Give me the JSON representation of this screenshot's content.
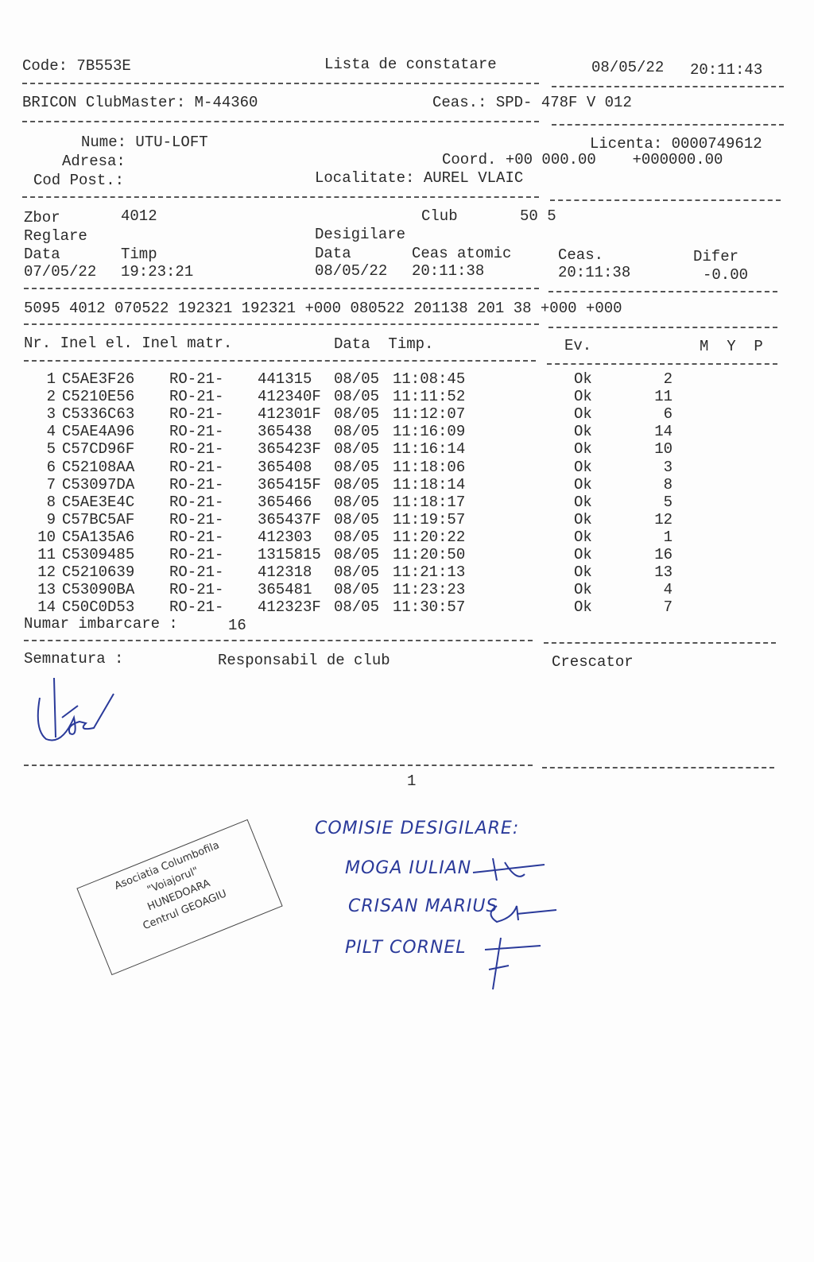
{
  "header": {
    "code": "Code: 7B553E",
    "title": "Lista de constatare",
    "date": "08/05/22",
    "time": "20:11:43"
  },
  "device": {
    "clubmaster": "BRICON ClubMaster: M-44360",
    "clock": "Ceas.: SPD- 478F V 012"
  },
  "owner": {
    "name": "Nume: UTU-LOFT",
    "licence": "Licenta: 0000749612",
    "address": "Adresa:",
    "coord": "Coord. +00 000.00    +000000.00",
    "postcode": "Cod Post.:",
    "locality": "Localitate: AUREL VLAIC"
  },
  "flight": {
    "zbor_label": "Zbor",
    "zbor": "4012",
    "club_label": "Club",
    "club": "50 5",
    "reglare": "Reglare",
    "desigilare": "Desigilare",
    "data1": "Data",
    "timp1": "Timp",
    "data2": "Data",
    "ceas_atomic": "Ceas atomic",
    "ceas": "Ceas.",
    "difer": "Difer",
    "reg_date": "07/05/22",
    "reg_time": "19:23:21",
    "des_date": "08/05/22",
    "des_atomic": "20:11:38",
    "des_clock": "20:11:38",
    "diff": "-0.00"
  },
  "code_line": "5095 4012 070522 192321 192321 +000 080522 201138 201 38 +000 +000",
  "table": {
    "headers": {
      "nr": "Nr. Inel el. Inel matr.",
      "data": "Data  Timp.",
      "ev": "Ev.",
      "myp": "M  Y  P"
    },
    "rows": [
      {
        "nr": "1",
        "el": "C5AE3F26",
        "prefix": "RO-21-",
        "matr": "441315",
        "date": "08/05",
        "time": "11:08:45",
        "ev": "Ok",
        "pos": "2"
      },
      {
        "nr": "2",
        "el": "C5210E56",
        "prefix": "RO-21-",
        "matr": "412340F",
        "date": "08/05",
        "time": "11:11:52",
        "ev": "Ok",
        "pos": "11"
      },
      {
        "nr": "3",
        "el": "C5336C63",
        "prefix": "RO-21-",
        "matr": "412301F",
        "date": "08/05",
        "time": "11:12:07",
        "ev": "Ok",
        "pos": "6"
      },
      {
        "nr": "4",
        "el": "C5AE4A96",
        "prefix": "RO-21-",
        "matr": "365438",
        "date": "08/05",
        "time": "11:16:09",
        "ev": "Ok",
        "pos": "14"
      },
      {
        "nr": "5",
        "el": "C57CD96F",
        "prefix": "RO-21-",
        "matr": "365423F",
        "date": "08/05",
        "time": "11:16:14",
        "ev": "Ok",
        "pos": "10"
      },
      {
        "nr": "6",
        "el": "C52108AA",
        "prefix": "RO-21-",
        "matr": "365408",
        "date": "08/05",
        "time": "11:18:06",
        "ev": "Ok",
        "pos": "3"
      },
      {
        "nr": "7",
        "el": "C53097DA",
        "prefix": "RO-21-",
        "matr": "365415F",
        "date": "08/05",
        "time": "11:18:14",
        "ev": "Ok",
        "pos": "8"
      },
      {
        "nr": "8",
        "el": "C5AE3E4C",
        "prefix": "RO-21-",
        "matr": "365466",
        "date": "08/05",
        "time": "11:18:17",
        "ev": "Ok",
        "pos": "5"
      },
      {
        "nr": "9",
        "el": "C57BC5AF",
        "prefix": "RO-21-",
        "matr": "365437F",
        "date": "08/05",
        "time": "11:19:57",
        "ev": "Ok",
        "pos": "12"
      },
      {
        "nr": "10",
        "el": "C5A135A6",
        "prefix": "RO-21-",
        "matr": "412303",
        "date": "08/05",
        "time": "11:20:22",
        "ev": "Ok",
        "pos": "1"
      },
      {
        "nr": "11",
        "el": "C5309485",
        "prefix": "RO-21-",
        "matr": "1315815",
        "date": "08/05",
        "time": "11:20:50",
        "ev": "Ok",
        "pos": "16"
      },
      {
        "nr": "12",
        "el": "C5210639",
        "prefix": "RO-21-",
        "matr": "412318",
        "date": "08/05",
        "time": "11:21:13",
        "ev": "Ok",
        "pos": "13"
      },
      {
        "nr": "13",
        "el": "C53090BA",
        "prefix": "RO-21-",
        "matr": "365481",
        "date": "08/05",
        "time": "11:23:23",
        "ev": "Ok",
        "pos": "4"
      },
      {
        "nr": "14",
        "el": "C50C0D53",
        "prefix": "RO-21-",
        "matr": "412323F",
        "date": "08/05",
        "time": "11:30:57",
        "ev": "Ok",
        "pos": "7"
      }
    ]
  },
  "summary": {
    "label": "Numar imbarcare :",
    "value": "16"
  },
  "signatures": {
    "semnatura": "Semnatura :",
    "club": "Responsabil de club",
    "crescator": "Crescator"
  },
  "page_number": "1",
  "stamp": {
    "line1": "Asociatia Columbofila",
    "line2": "\"Voiajorul\"",
    "line3": "HUNEDOARA",
    "line4": "Centrul GEOAGIU"
  },
  "handwritten": {
    "title": "COMISIE DESIGILARE:",
    "m1": "MOGA IULIAN",
    "m2": "CRISAN MARIUS",
    "m3": "PILT CORNEL"
  }
}
